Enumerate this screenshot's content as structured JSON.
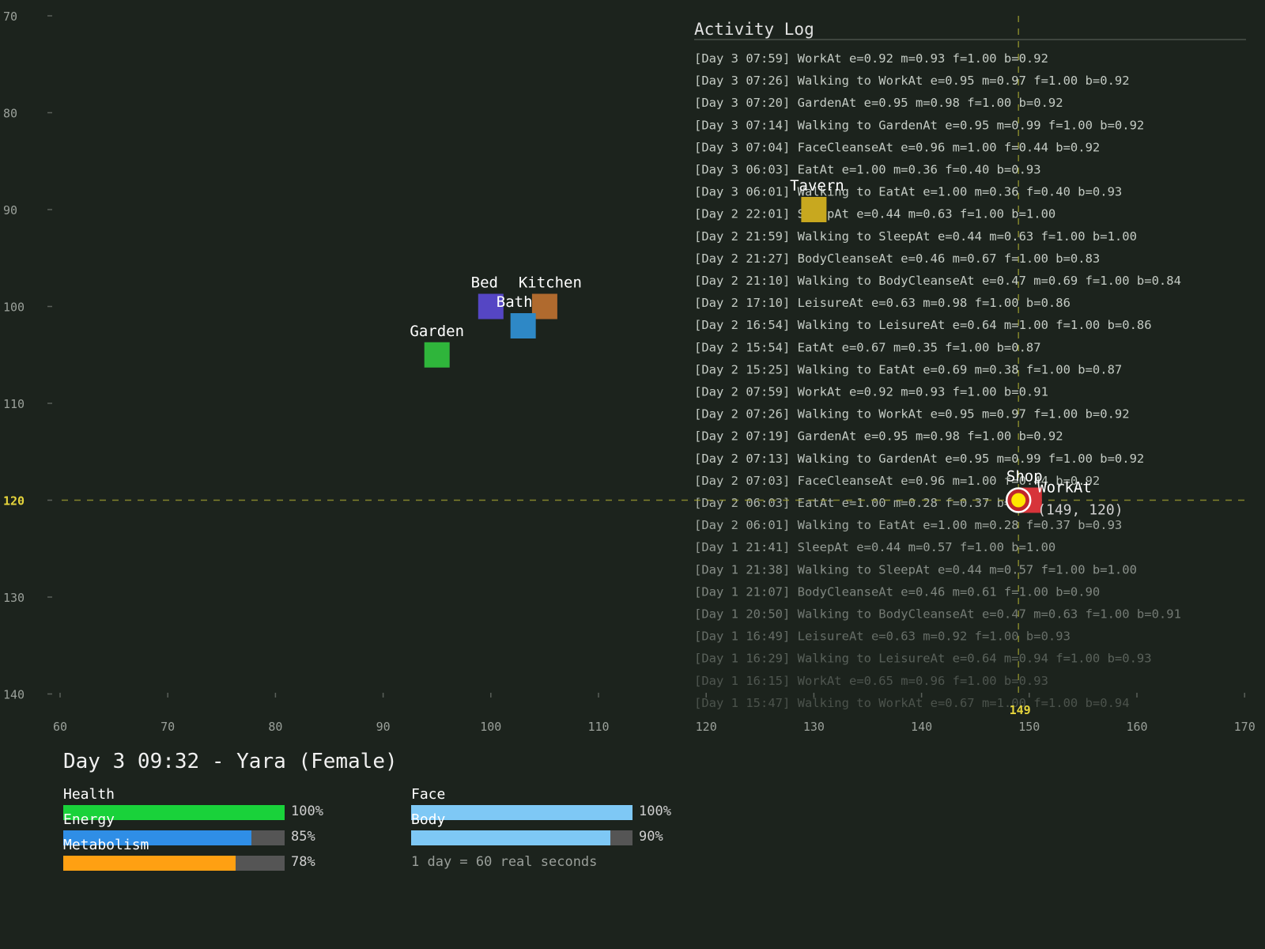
{
  "axes": {
    "x_ticks": [
      "60",
      "70",
      "80",
      "90",
      "100",
      "110",
      "120",
      "130",
      "140",
      "150",
      "160",
      "170"
    ],
    "y_ticks": [
      "70",
      "80",
      "90",
      "100",
      "110",
      "120",
      "130",
      "140"
    ],
    "x_highlight": "149",
    "y_highlight": "120"
  },
  "locations": [
    {
      "name": "Bed",
      "x": 100,
      "y": 100,
      "color": "#5546c4"
    },
    {
      "name": "Kitchen",
      "x": 105,
      "y": 100,
      "color": "#b06a2e"
    },
    {
      "name": "Bath",
      "x": 103,
      "y": 102,
      "color": "#2e88c6"
    },
    {
      "name": "Garden",
      "x": 95,
      "y": 105,
      "color": "#2fb53b"
    },
    {
      "name": "Tavern",
      "x": 130,
      "y": 90,
      "color": "#c8a81f"
    },
    {
      "name": "Shop",
      "x": 150,
      "y": 120,
      "color": "#d7343a"
    }
  ],
  "agent": {
    "x": 149,
    "y": 120,
    "action": "WorkAt",
    "coord_text": "(149, 120)"
  },
  "activity_log": {
    "title": "Activity Log",
    "entries": [
      "[Day 3 07:59] WorkAt e=0.92 m=0.93 f=1.00 b=0.92",
      "[Day 3 07:26] Walking to WorkAt e=0.95 m=0.97 f=1.00 b=0.92",
      "[Day 3 07:20] GardenAt e=0.95 m=0.98 f=1.00 b=0.92",
      "[Day 3 07:14] Walking to GardenAt e=0.95 m=0.99 f=1.00 b=0.92",
      "[Day 3 07:04] FaceCleanseAt e=0.96 m=1.00 f=0.44 b=0.92",
      "[Day 3 06:03] EatAt e=1.00 m=0.36 f=0.40 b=0.93",
      "[Day 3 06:01] Walking to EatAt e=1.00 m=0.36 f=0.40 b=0.93",
      "[Day 2 22:01] SleepAt e=0.44 m=0.63 f=1.00 b=1.00",
      "[Day 2 21:59] Walking to SleepAt e=0.44 m=0.63 f=1.00 b=1.00",
      "[Day 2 21:27] BodyCleanseAt e=0.46 m=0.67 f=1.00 b=0.83",
      "[Day 2 21:10] Walking to BodyCleanseAt e=0.47 m=0.69 f=1.00 b=0.84",
      "[Day 2 17:10] LeisureAt e=0.63 m=0.98 f=1.00 b=0.86",
      "[Day 2 16:54] Walking to LeisureAt e=0.64 m=1.00 f=1.00 b=0.86",
      "[Day 2 15:54] EatAt e=0.67 m=0.35 f=1.00 b=0.87",
      "[Day 2 15:25] Walking to EatAt e=0.69 m=0.38 f=1.00 b=0.87",
      "[Day 2 07:59] WorkAt e=0.92 m=0.93 f=1.00 b=0.91",
      "[Day 2 07:26] Walking to WorkAt e=0.95 m=0.97 f=1.00 b=0.92",
      "[Day 2 07:19] GardenAt e=0.95 m=0.98 f=1.00 b=0.92",
      "[Day 2 07:13] Walking to GardenAt e=0.95 m=0.99 f=1.00 b=0.92",
      "[Day 2 07:03] FaceCleanseAt e=0.96 m=1.00 f=0.44 b=0.92",
      "[Day 2 06:03] EatAt e=1.00 m=0.28 f=0.37 b=0.93",
      "[Day 2 06:01] Walking to EatAt e=1.00 m=0.28 f=0.37 b=0.93",
      "[Day 1 21:41] SleepAt e=0.44 m=0.57 f=1.00 b=1.00",
      "[Day 1 21:38] Walking to SleepAt e=0.44 m=0.57 f=1.00 b=1.00",
      "[Day 1 21:07] BodyCleanseAt e=0.46 m=0.61 f=1.00 b=0.90",
      "[Day 1 20:50] Walking to BodyCleanseAt e=0.47 m=0.63 f=1.00 b=0.91",
      "[Day 1 16:49] LeisureAt e=0.63 m=0.92 f=1.00 b=0.93",
      "[Day 1 16:29] Walking to LeisureAt e=0.64 m=0.94 f=1.00 b=0.93",
      "[Day 1 16:15] WorkAt e=0.65 m=0.96 f=1.00 b=0.93",
      "[Day 1 15:47] Walking to WorkAt e=0.67 m=1.00 f=1.00 b=0.94"
    ]
  },
  "status": {
    "title": "Day 3 09:32 - Yara (Female)",
    "stats": [
      {
        "name": "Health",
        "value": 1.0,
        "label": "100%",
        "color": "#19d23a"
      },
      {
        "name": "Energy",
        "value": 0.85,
        "label": "85%",
        "color": "#2f8ee6"
      },
      {
        "name": "Metabolism",
        "value": 0.78,
        "label": "78%",
        "color": "#ffa012"
      },
      {
        "name": "Face",
        "value": 1.0,
        "label": "100%",
        "color": "#7ec8f5"
      },
      {
        "name": "Body",
        "value": 0.9,
        "label": "90%",
        "color": "#7ec8f5"
      }
    ],
    "footnote": "1 day = 60 real seconds"
  }
}
